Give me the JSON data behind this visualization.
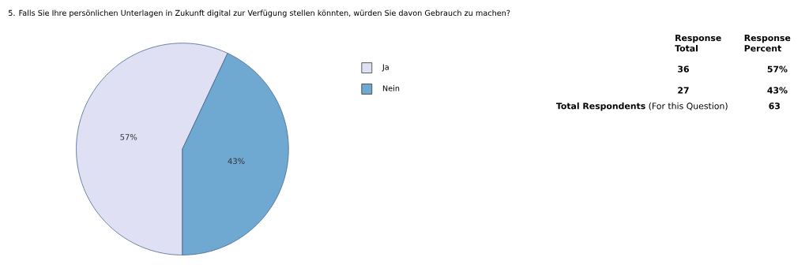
{
  "chart_data": {
    "type": "pie",
    "title": "5.  Falls Sie Ihre persönlichen Unterlagen in Zukunft digital zur Verfügung stellen könnten, würden Sie davon Gebrauch zu machen?",
    "categories": [
      "Ja",
      "Nein"
    ],
    "values": [
      57,
      43
    ],
    "value_labels": [
      "57%",
      "43%"
    ],
    "colors": [
      "#e0e0f4",
      "#6fa8d0"
    ],
    "legend": "right",
    "annotations": [
      "Response Total",
      "Response Percent",
      "36",
      "57%",
      "27",
      "43%",
      "**Total Respondents** (For this Question)",
      "63"
    ]
  }
}
